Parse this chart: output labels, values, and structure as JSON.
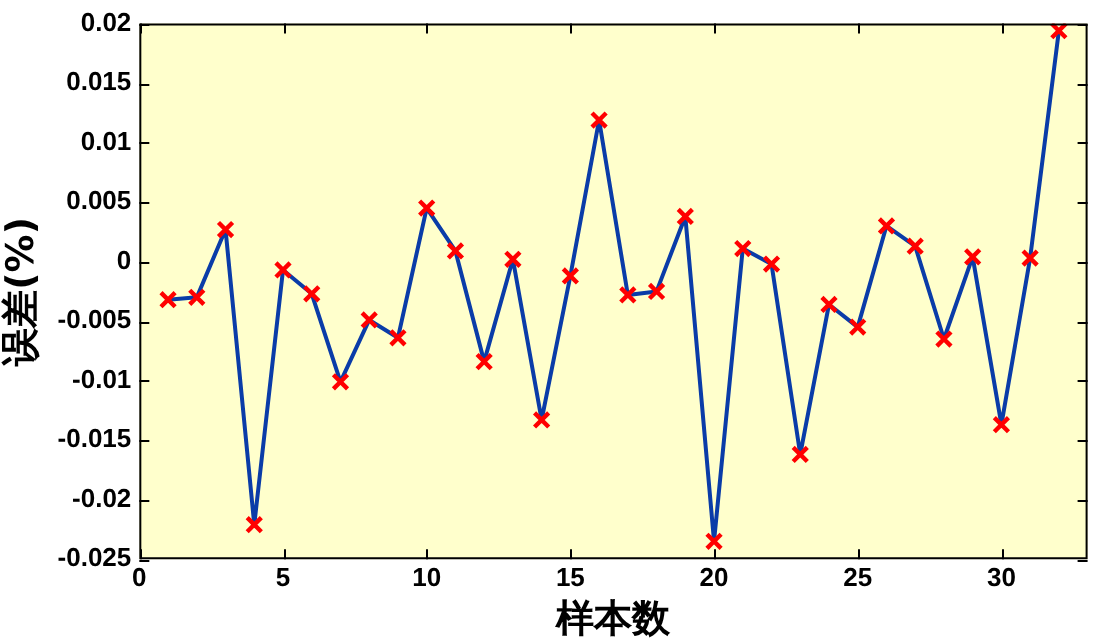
{
  "chart_data": {
    "type": "line",
    "xlabel": "样本数",
    "ylabel": "误差(%)",
    "x": [
      1,
      2,
      3,
      4,
      5,
      6,
      7,
      8,
      9,
      10,
      11,
      12,
      13,
      14,
      15,
      16,
      17,
      18,
      19,
      20,
      21,
      22,
      23,
      24,
      25,
      26,
      27,
      28,
      29,
      30,
      31,
      32
    ],
    "series": [
      {
        "color": "#0a3ca8",
        "values": [
          -0.0032,
          -0.003,
          0.0027,
          -0.0221,
          -0.0007,
          -0.0027,
          -0.0101,
          -0.0049,
          -0.0064,
          0.0045,
          0.0009,
          -0.0084,
          0.0002,
          -0.0133,
          -0.0012,
          0.0119,
          -0.0028,
          -0.0025,
          0.0038,
          -0.0235,
          0.0011,
          -0.0002,
          -0.0162,
          -0.0036,
          -0.0055,
          0.003,
          0.0013,
          -0.0065,
          0.0004,
          -0.0137,
          0.0003,
          0.0194
        ]
      }
    ],
    "marker": "cross",
    "line_style": "solid",
    "grid": false,
    "legend": false,
    "xlim": [
      0,
      33
    ],
    "xticks": [
      0,
      5,
      10,
      15,
      20,
      25,
      30
    ],
    "ylim": [
      -0.025,
      0.02
    ],
    "yticks": [
      -0.025,
      -0.02,
      -0.015,
      -0.01,
      -0.005,
      0,
      0.005,
      0.01,
      0.015,
      0.02
    ]
  }
}
